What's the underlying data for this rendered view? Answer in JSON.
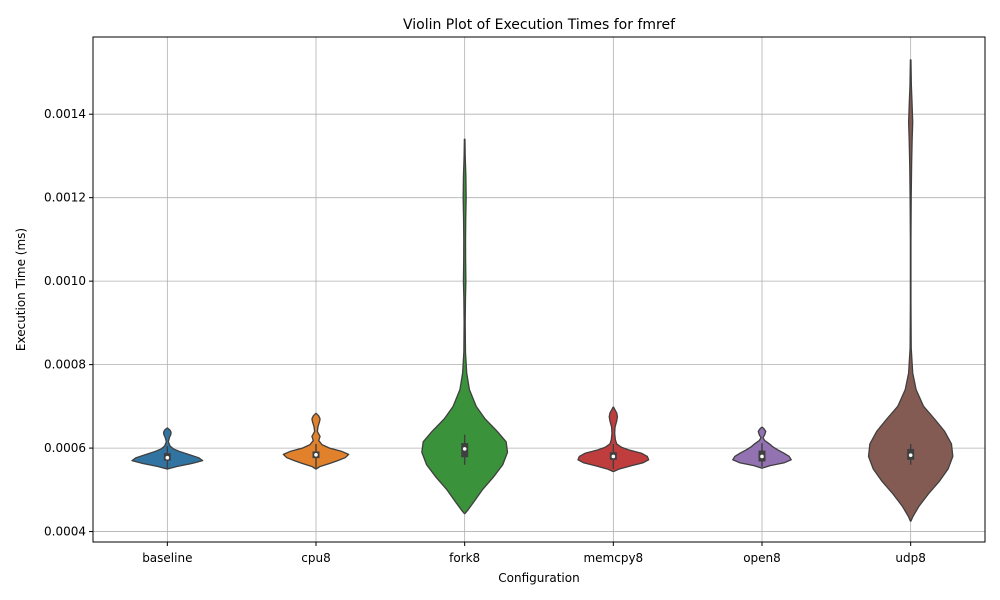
{
  "chart_data": {
    "type": "violin",
    "title": "Violin Plot of Execution Times for fmref",
    "xlabel": "Configuration",
    "ylabel": "Execution Time (ms)",
    "ylim": [
      0.000375,
      0.001585
    ],
    "yticks": [
      0.0004,
      0.0006,
      0.0008,
      0.001,
      0.0012,
      0.0014
    ],
    "ytick_labels": [
      "0.0004",
      "0.0006",
      "0.0008",
      "0.0010",
      "0.0012",
      "0.0014"
    ],
    "grid": true,
    "categories": [
      "baseline",
      "cpu8",
      "fork8",
      "memcpy8",
      "open8",
      "udp8"
    ],
    "series": [
      {
        "category": "baseline",
        "color": "#3274a1",
        "profile": [
          [
            0.00055,
            0.004
          ],
          [
            0.000556,
            0.14
          ],
          [
            0.000563,
            0.36
          ],
          [
            0.00057,
            0.52
          ],
          [
            0.000577,
            0.46
          ],
          [
            0.000585,
            0.31
          ],
          [
            0.000592,
            0.18
          ],
          [
            0.000598,
            0.09
          ],
          [
            0.000605,
            0.04
          ],
          [
            0.000615,
            0.015
          ],
          [
            0.000625,
            0.03
          ],
          [
            0.000632,
            0.05
          ],
          [
            0.000638,
            0.055
          ],
          [
            0.000643,
            0.04
          ],
          [
            0.000648,
            0.004
          ]
        ],
        "q1": 0.00057,
        "median": 0.000577,
        "q3": 0.000588,
        "whisker_low": 0.00055,
        "whisker_high": 0.000605
      },
      {
        "category": "cpu8",
        "color": "#e1812c",
        "profile": [
          [
            0.00055,
            0.004
          ],
          [
            0.000556,
            0.06
          ],
          [
            0.000563,
            0.2
          ],
          [
            0.00057,
            0.32
          ],
          [
            0.000577,
            0.43
          ],
          [
            0.000585,
            0.48
          ],
          [
            0.000592,
            0.38
          ],
          [
            0.0006,
            0.2
          ],
          [
            0.000608,
            0.09
          ],
          [
            0.000618,
            0.04
          ],
          [
            0.000628,
            0.06
          ],
          [
            0.00064,
            0.02
          ],
          [
            0.000652,
            0.03
          ],
          [
            0.000662,
            0.05
          ],
          [
            0.00067,
            0.06
          ],
          [
            0.000677,
            0.04
          ],
          [
            0.000683,
            0.004
          ]
        ],
        "q1": 0.000576,
        "median": 0.000584,
        "q3": 0.000592,
        "whisker_low": 0.000552,
        "whisker_high": 0.00061
      },
      {
        "category": "fork8",
        "color": "#3a923a",
        "profile": [
          [
            0.000443,
            0.004
          ],
          [
            0.00045,
            0.04
          ],
          [
            0.00047,
            0.13
          ],
          [
            0.0005,
            0.26
          ],
          [
            0.00053,
            0.42
          ],
          [
            0.00056,
            0.56
          ],
          [
            0.00059,
            0.63
          ],
          [
            0.000615,
            0.61
          ],
          [
            0.00064,
            0.48
          ],
          [
            0.00067,
            0.3
          ],
          [
            0.0007,
            0.17
          ],
          [
            0.00074,
            0.07
          ],
          [
            0.00078,
            0.03
          ],
          [
            0.00083,
            0.012
          ],
          [
            0.0009,
            0.008
          ],
          [
            0.00096,
            0.012
          ],
          [
            0.001,
            0.018
          ],
          [
            0.00105,
            0.014
          ],
          [
            0.0011,
            0.013
          ],
          [
            0.00115,
            0.016
          ],
          [
            0.0012,
            0.022
          ],
          [
            0.00125,
            0.018
          ],
          [
            0.0013,
            0.008
          ],
          [
            0.00134,
            0.004
          ]
        ],
        "q1": 0.000578,
        "median": 0.000598,
        "q3": 0.000612,
        "whisker_low": 0.00056,
        "whisker_high": 0.000632
      },
      {
        "category": "memcpy8",
        "color": "#c03d3e",
        "profile": [
          [
            0.000544,
            0.004
          ],
          [
            0.00055,
            0.09
          ],
          [
            0.000558,
            0.27
          ],
          [
            0.000565,
            0.44
          ],
          [
            0.000572,
            0.52
          ],
          [
            0.00058,
            0.5
          ],
          [
            0.000588,
            0.41
          ],
          [
            0.000595,
            0.24
          ],
          [
            0.000602,
            0.12
          ],
          [
            0.00061,
            0.05
          ],
          [
            0.00062,
            0.03
          ],
          [
            0.000635,
            0.02
          ],
          [
            0.00065,
            0.025
          ],
          [
            0.000665,
            0.05
          ],
          [
            0.000675,
            0.06
          ],
          [
            0.000684,
            0.05
          ],
          [
            0.000693,
            0.02
          ],
          [
            0.000698,
            0.004
          ]
        ],
        "q1": 0.000572,
        "median": 0.00058,
        "q3": 0.00059,
        "whisker_low": 0.00055,
        "whisker_high": 0.00061
      },
      {
        "category": "open8",
        "color": "#9372b2",
        "profile": [
          [
            0.000552,
            0.004
          ],
          [
            0.000558,
            0.12
          ],
          [
            0.000565,
            0.33
          ],
          [
            0.000572,
            0.43
          ],
          [
            0.00058,
            0.4
          ],
          [
            0.000588,
            0.32
          ],
          [
            0.000596,
            0.23
          ],
          [
            0.000603,
            0.16
          ],
          [
            0.00061,
            0.11
          ],
          [
            0.000618,
            0.04
          ],
          [
            0.000625,
            0.015
          ],
          [
            0.000632,
            0.04
          ],
          [
            0.00064,
            0.055
          ],
          [
            0.000646,
            0.03
          ],
          [
            0.00065,
            0.004
          ]
        ],
        "q1": 0.000568,
        "median": 0.00058,
        "q3": 0.000594,
        "whisker_low": 0.000555,
        "whisker_high": 0.000612
      },
      {
        "category": "udp8",
        "color": "#845b53",
        "profile": [
          [
            0.000425,
            0.004
          ],
          [
            0.000435,
            0.03
          ],
          [
            0.00046,
            0.12
          ],
          [
            0.00049,
            0.26
          ],
          [
            0.00052,
            0.42
          ],
          [
            0.00055,
            0.55
          ],
          [
            0.00058,
            0.62
          ],
          [
            0.00061,
            0.6
          ],
          [
            0.00064,
            0.5
          ],
          [
            0.00067,
            0.35
          ],
          [
            0.0007,
            0.19
          ],
          [
            0.00074,
            0.08
          ],
          [
            0.00078,
            0.03
          ],
          [
            0.00084,
            0.008
          ],
          [
            0.00095,
            0.004
          ],
          [
            0.0011,
            0.004
          ],
          [
            0.0012,
            0.008
          ],
          [
            0.00128,
            0.014
          ],
          [
            0.00134,
            0.022
          ],
          [
            0.00138,
            0.03
          ],
          [
            0.00142,
            0.022
          ],
          [
            0.00147,
            0.01
          ],
          [
            0.00153,
            0.004
          ]
        ],
        "q1": 0.000572,
        "median": 0.000583,
        "q3": 0.000598,
        "whisker_low": 0.00056,
        "whisker_high": 0.00061
      }
    ]
  }
}
